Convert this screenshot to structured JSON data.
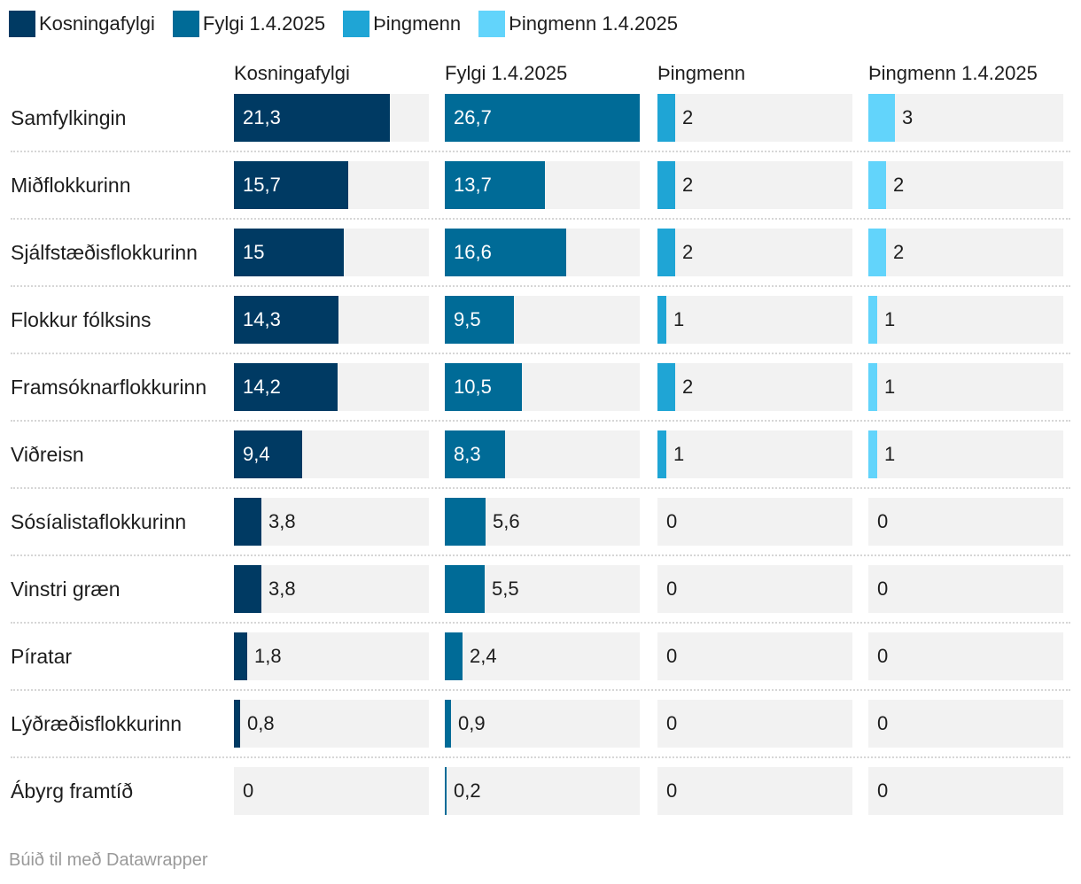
{
  "legend": [
    {
      "label": "Kosningafylgi",
      "color": "#003a63"
    },
    {
      "label": "Fylgi 1.4.2025",
      "color": "#006b97"
    },
    {
      "label": "Þingmenn",
      "color": "#1fa5d5"
    },
    {
      "label": "Þingmenn 1.4.2025",
      "color": "#62d4fb"
    }
  ],
  "footer": "Búið til með Datawrapper",
  "chart_data": {
    "type": "bar",
    "categories": [
      "Samfylkingin",
      "Miðflokkurinn",
      "Sjálfstæðisflokkurinn",
      "Flokkur fólksins",
      "Framsóknarflokkurinn",
      "Viðreisn",
      "Sósíalistaflokkurinn",
      "Vinstri græn",
      "Píratar",
      "Lýðræðisflokkurinn",
      "Ábyrg framtíð"
    ],
    "series": [
      {
        "name": "Kosningafylgi",
        "color": "#003a63",
        "xlim": [
          0,
          26.7
        ],
        "values": [
          21.3,
          15.7,
          15,
          14.3,
          14.2,
          9.4,
          3.8,
          3.8,
          1.8,
          0.8,
          0
        ],
        "labels": [
          "21,3",
          "15,7",
          "15",
          "14,3",
          "14,2",
          "9,4",
          "3,8",
          "3,8",
          "1,8",
          "0,8",
          "0"
        ]
      },
      {
        "name": "Fylgi 1.4.2025",
        "color": "#006b97",
        "xlim": [
          0,
          26.7
        ],
        "values": [
          26.7,
          13.7,
          16.6,
          9.5,
          10.5,
          8.3,
          5.6,
          5.5,
          2.4,
          0.9,
          0.2
        ],
        "labels": [
          "26,7",
          "13,7",
          "16,6",
          "9,5",
          "10,5",
          "8,3",
          "5,6",
          "5,5",
          "2,4",
          "0,9",
          "0,2"
        ]
      },
      {
        "name": "Þingmenn",
        "color": "#1fa5d5",
        "xlim": [
          0,
          22
        ],
        "values": [
          2,
          2,
          2,
          1,
          2,
          1,
          0,
          0,
          0,
          0,
          0
        ],
        "labels": [
          "2",
          "2",
          "2",
          "1",
          "2",
          "1",
          "0",
          "0",
          "0",
          "0",
          "0"
        ]
      },
      {
        "name": "Þingmenn 1.4.2025",
        "color": "#62d4fb",
        "xlim": [
          0,
          22
        ],
        "values": [
          3,
          2,
          2,
          1,
          1,
          1,
          0,
          0,
          0,
          0,
          0
        ],
        "labels": [
          "3",
          "2",
          "2",
          "1",
          "1",
          "1",
          "0",
          "0",
          "0",
          "0",
          "0"
        ]
      }
    ],
    "legend": "top-left",
    "grid": false
  }
}
